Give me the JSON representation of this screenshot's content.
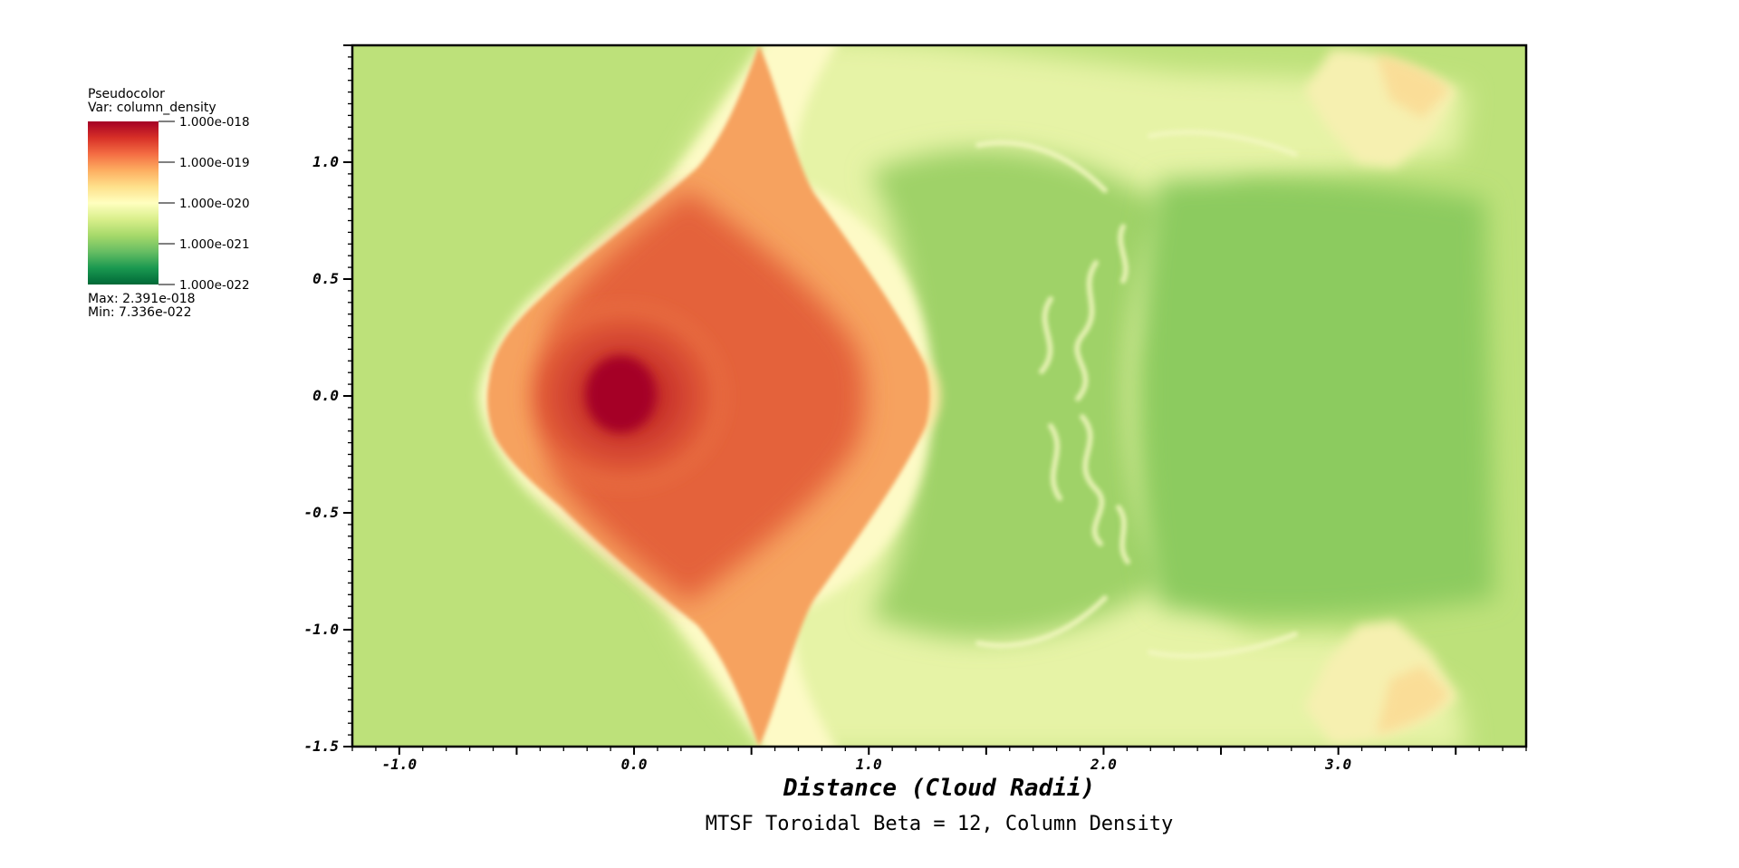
{
  "legend": {
    "plot_type": "Pseudocolor",
    "variable": "Var: column_density",
    "tick_labels": [
      "1.000e-018",
      "1.000e-019",
      "1.000e-020",
      "1.000e-021",
      "1.000e-022"
    ],
    "max_label": "Max:  2.391e-018",
    "min_label": "Min:  7.336e-022",
    "colors": [
      "#a50026",
      "#d73027",
      "#f46d43",
      "#fdae61",
      "#fee08b",
      "#ffffbf",
      "#d9ef8b",
      "#a6d96a",
      "#66bd63",
      "#1a9850",
      "#006837"
    ]
  },
  "chart_data": {
    "type": "heatmap",
    "title": "MTSF Toroidal Beta = 12, Column Density",
    "xlabel": "Distance (Cloud Radii)",
    "ylabel": "",
    "xlim": [
      -1.2,
      3.8
    ],
    "ylim": [
      -1.5,
      1.5
    ],
    "x_ticks": [
      -1.0,
      0.0,
      1.0,
      2.0,
      3.0
    ],
    "x_tick_labels": [
      "-1.0",
      "0.0",
      "1.0",
      "2.0",
      "3.0"
    ],
    "y_ticks": [
      1.0,
      0.5,
      0.0,
      -0.5,
      -1.0,
      -1.5
    ],
    "y_tick_labels": [
      "1.0",
      "0.5",
      "0.0",
      "-0.5",
      "-1.0",
      "-1.5"
    ],
    "colorbar": {
      "variable": "column_density",
      "scale": "log",
      "range": [
        1e-22,
        1e-18
      ],
      "data_max": 2.391e-18,
      "data_min": 7.336e-22
    }
  }
}
